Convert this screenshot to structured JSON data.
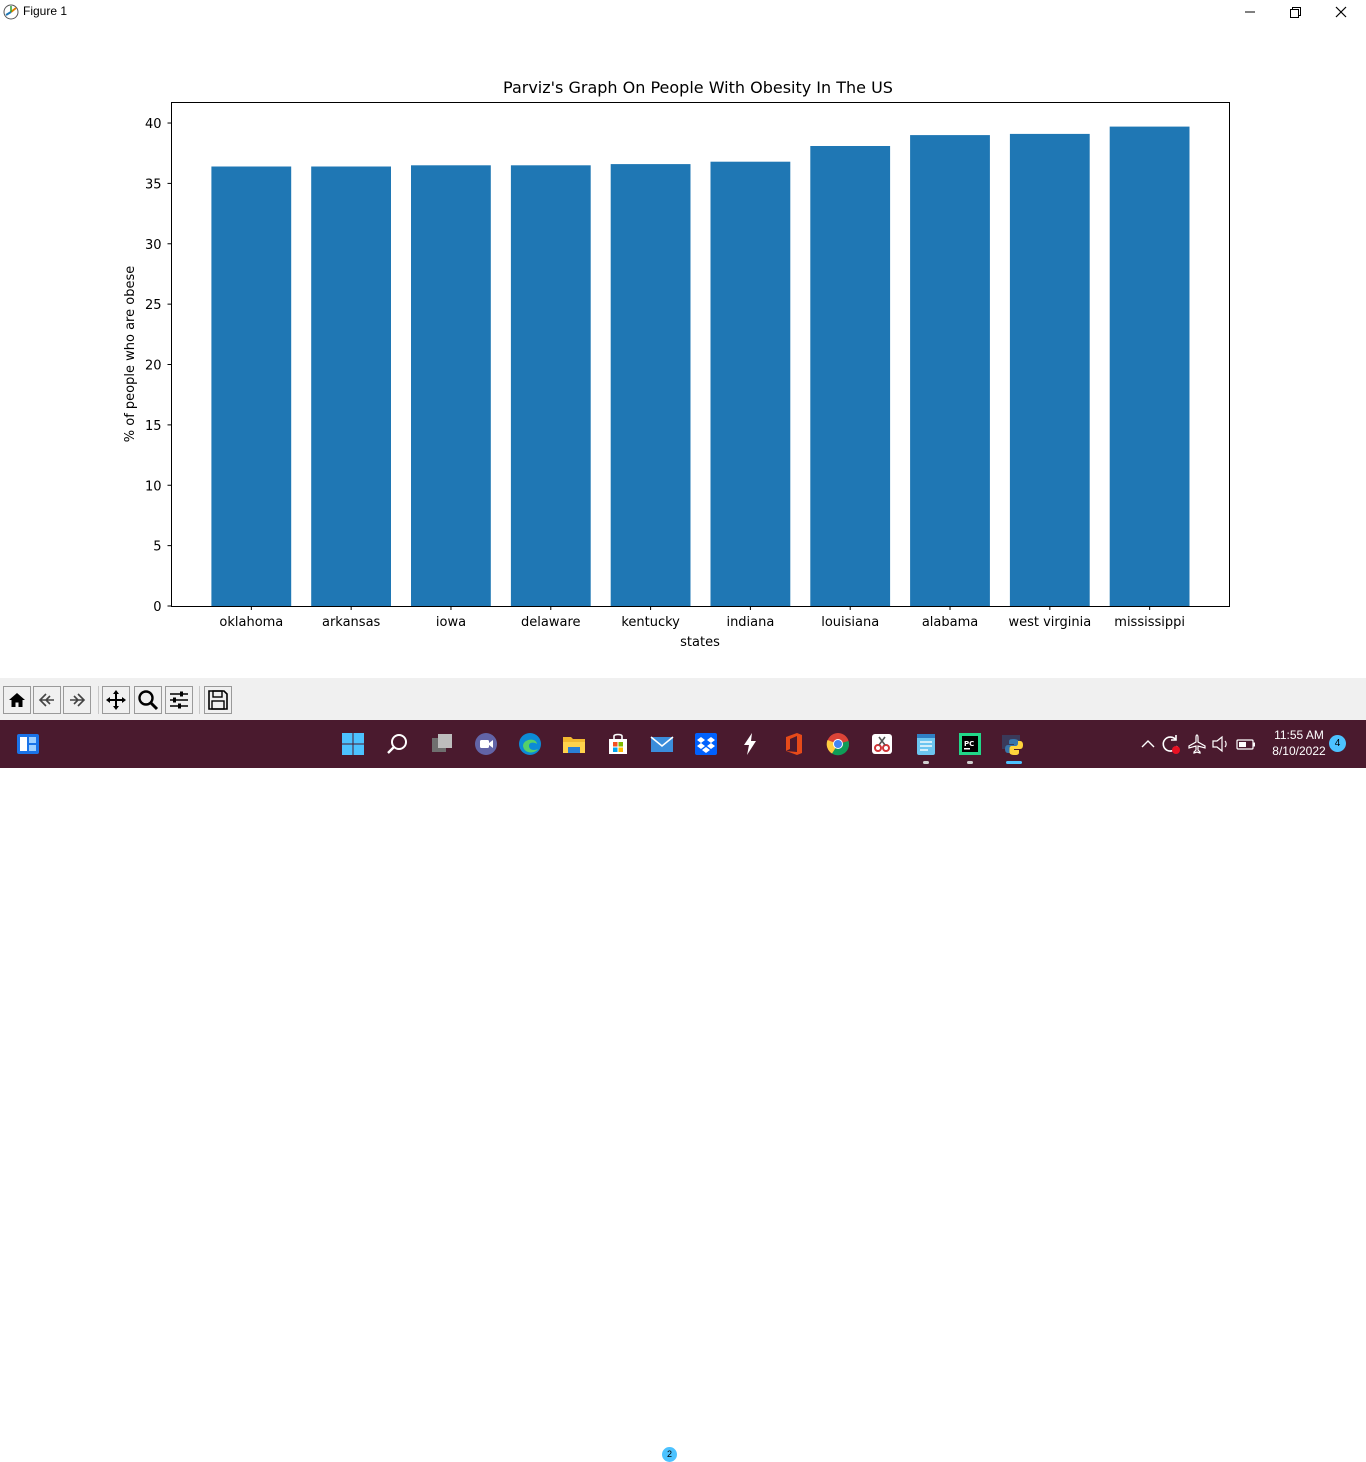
{
  "window": {
    "title": "Figure 1"
  },
  "toolbar": {
    "buttons": [
      "home-icon",
      "back-icon",
      "forward-icon",
      "pan-icon",
      "zoom-icon",
      "configure-subplots-icon",
      "save-icon"
    ]
  },
  "taskbar": {
    "mail_badge": "2",
    "time": "11:55 AM",
    "date": "8/10/2022",
    "notification_count": "4"
  },
  "chart_data": {
    "type": "bar",
    "title": "Parviz's Graph On People With Obesity In The US",
    "xlabel": "states",
    "ylabel": "% of people who are obese",
    "categories": [
      "oklahoma",
      "arkansas",
      "iowa",
      "delaware",
      "kentucky",
      "indiana",
      "louisiana",
      "alabama",
      "west virginia",
      "mississippi"
    ],
    "values": [
      36.4,
      36.4,
      36.5,
      36.5,
      36.6,
      36.8,
      38.1,
      39.0,
      39.1,
      39.7
    ],
    "ylim": [
      0,
      41.7
    ],
    "yticks": [
      0,
      5,
      10,
      15,
      20,
      25,
      30,
      35,
      40
    ],
    "bar_color": "#1f77b4",
    "grid": false,
    "legend": "none"
  }
}
